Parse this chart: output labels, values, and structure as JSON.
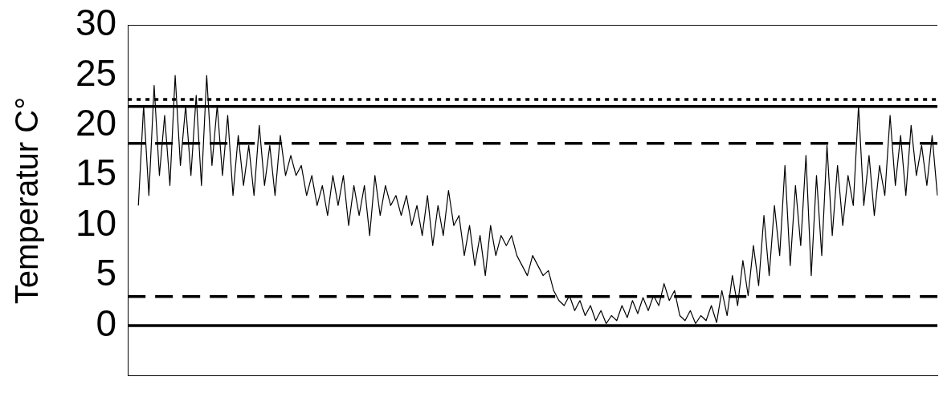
{
  "chart_data": {
    "type": "line",
    "ylabel": "Temperatur C°",
    "categories": [
      null,
      null,
      null,
      null,
      null,
      null,
      null,
      null,
      null,
      null,
      null,
      null,
      null,
      null,
      null,
      null,
      null,
      null,
      null,
      null,
      null,
      null,
      null,
      null,
      null,
      null,
      null,
      null,
      null,
      null,
      null,
      null,
      null,
      null,
      null,
      null,
      null,
      null,
      null,
      null,
      null,
      null,
      null,
      null,
      null,
      null,
      null,
      null,
      null,
      null,
      null,
      null,
      null,
      null,
      null,
      null,
      null,
      null,
      null,
      null,
      null,
      null,
      null,
      null,
      null,
      null,
      null,
      null,
      null,
      null,
      null,
      null,
      null,
      null,
      null,
      null,
      null,
      null,
      null,
      null,
      null,
      null,
      null,
      null,
      null,
      null,
      null,
      null,
      null,
      null,
      null,
      null,
      null,
      null,
      null,
      null,
      null,
      null,
      null,
      null,
      null,
      null,
      null,
      null,
      null,
      null,
      null,
      null,
      null,
      null,
      null,
      null,
      null,
      null,
      null,
      null,
      null,
      null,
      null,
      null,
      null,
      null,
      null,
      null,
      null,
      null,
      null,
      null,
      null,
      null,
      null,
      null,
      null,
      null,
      null,
      null,
      null,
      null,
      null,
      null,
      null,
      null,
      null,
      null,
      null,
      null,
      null,
      null,
      null,
      null,
      null,
      null,
      null,
      null,
      null
    ],
    "series": [
      {
        "color": "#000000",
        "values": [
          null,
          null,
          12,
          22,
          13,
          24,
          15,
          21,
          14,
          25,
          16,
          22,
          15,
          23,
          14,
          25,
          16,
          22,
          15,
          21,
          13,
          19,
          14,
          18,
          13,
          20,
          14,
          18,
          13,
          19,
          15,
          17,
          15,
          16,
          13,
          15,
          12,
          14,
          11,
          15,
          12,
          15,
          10,
          14,
          11,
          14,
          9,
          15,
          11,
          14,
          12,
          13,
          11,
          13,
          10,
          12,
          9,
          13,
          8,
          12,
          9,
          13.5,
          10,
          11,
          7,
          10,
          6,
          9,
          5,
          10,
          7,
          9,
          8,
          9,
          7,
          6,
          5,
          7,
          6,
          5,
          5.5,
          3.5,
          2.5,
          2,
          3,
          1.5,
          2.5,
          1,
          2,
          0.5,
          1.5,
          0.2,
          1,
          0.5,
          2,
          0.8,
          2.5,
          1.2,
          2.8,
          1.5,
          3,
          2,
          4.2,
          2.5,
          3.5,
          1,
          0.5,
          1.5,
          0.2,
          1,
          0.5,
          2,
          0.3,
          3.5,
          1,
          5,
          2,
          6.5,
          3,
          8,
          4,
          11,
          5,
          12,
          7,
          16,
          6,
          14,
          8,
          17,
          5,
          15,
          7,
          18,
          9,
          16,
          10,
          15,
          12,
          22,
          12,
          17,
          11,
          16,
          13,
          21,
          14,
          19,
          13,
          20,
          15,
          18,
          14,
          19,
          13
        ]
      }
    ],
    "ylim": [
      -5,
      30
    ],
    "yticks": [
      0,
      5,
      10,
      15,
      20,
      25,
      30
    ],
    "grid": false,
    "legend": false,
    "marker": "none",
    "line_style": "solid",
    "ref_lines": [
      {
        "axis": "y",
        "value": 22.6,
        "color": "#000000",
        "line_style": "dotted"
      },
      {
        "axis": "y",
        "value": 21.9,
        "color": "#000000",
        "line_style": "solid"
      },
      {
        "axis": "y",
        "value": 18.2,
        "color": "#000000",
        "line_style": "dashed"
      },
      {
        "axis": "y",
        "value": 2.9,
        "color": "#000000",
        "line_style": "dashed"
      },
      {
        "axis": "y",
        "value": 0,
        "color": "#000000",
        "line_style": "solid"
      }
    ]
  }
}
